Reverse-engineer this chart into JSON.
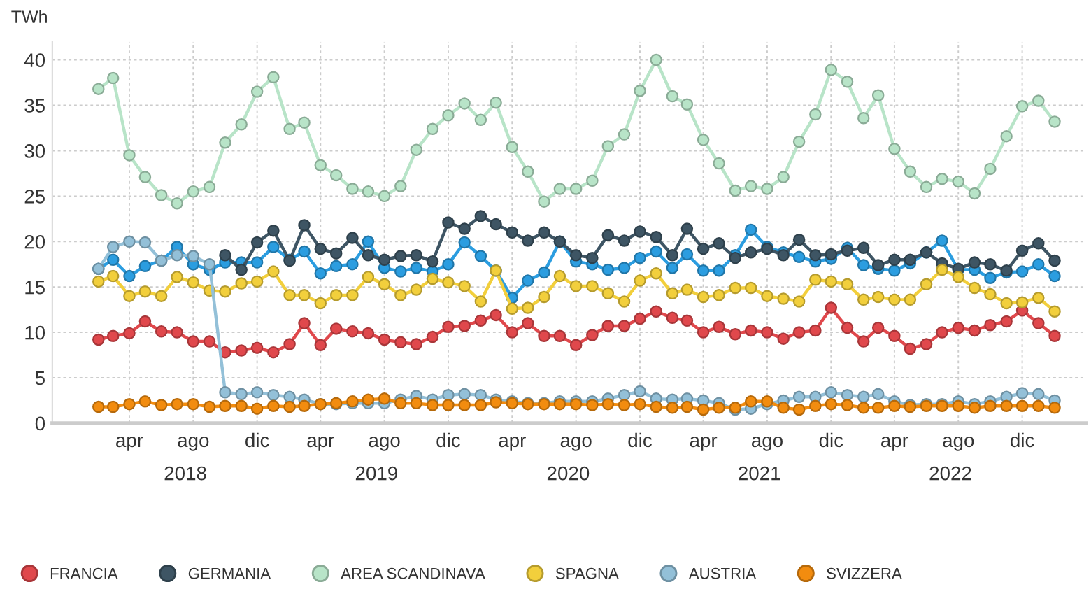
{
  "chart_data": {
    "type": "line",
    "ylabel": "TWh",
    "x": [
      "2018-02",
      "2018-03",
      "2018-04",
      "2018-05",
      "2018-06",
      "2018-07",
      "2018-08",
      "2018-09",
      "2018-10",
      "2018-11",
      "2018-12",
      "2019-01",
      "2019-02",
      "2019-03",
      "2019-04",
      "2019-05",
      "2019-06",
      "2019-07",
      "2019-08",
      "2019-09",
      "2019-10",
      "2019-11",
      "2019-12",
      "2020-01",
      "2020-02",
      "2020-03",
      "2020-04",
      "2020-05",
      "2020-06",
      "2020-07",
      "2020-08",
      "2020-09",
      "2020-10",
      "2020-11",
      "2020-12",
      "2021-01",
      "2021-02",
      "2021-03",
      "2021-04",
      "2021-05",
      "2021-06",
      "2021-07",
      "2021-08",
      "2021-09",
      "2021-10",
      "2021-11",
      "2021-12",
      "2022-01",
      "2022-02",
      "2022-03",
      "2022-04",
      "2022-05",
      "2022-06",
      "2022-07",
      "2022-08",
      "2022-09",
      "2022-10",
      "2022-11",
      "2022-12",
      "2023-01",
      "2023-02"
    ],
    "series": [
      {
        "color": "#2b9de0",
        "values": [
          17.0,
          18.0,
          16.2,
          17.3,
          17.9,
          19.4,
          17.5,
          16.9,
          17.7,
          17.7,
          17.7,
          19.4,
          18.0,
          18.9,
          16.5,
          17.3,
          17.5,
          20.0,
          17.1,
          16.7,
          17.1,
          16.7,
          17.5,
          19.9,
          18.4,
          16.8,
          13.8,
          15.7,
          16.6,
          20.0,
          17.8,
          17.5,
          16.9,
          17.1,
          18.2,
          18.9,
          17.1,
          18.6,
          16.8,
          16.8,
          18.5,
          21.3,
          19.4,
          18.8,
          18.3,
          17.8,
          18.1,
          19.3,
          17.4,
          17.0,
          16.8,
          17.6,
          18.8,
          20.1,
          16.9,
          16.9,
          16.0,
          16.6,
          16.7,
          17.5,
          16.2
        ]
      },
      {
        "name": "FRANCIA",
        "color": "#e0484c",
        "values": [
          9.2,
          9.6,
          9.9,
          11.2,
          10.1,
          10.0,
          9.0,
          9.0,
          7.8,
          8.0,
          8.3,
          7.8,
          8.7,
          11.0,
          8.6,
          10.4,
          10.1,
          9.9,
          9.2,
          8.9,
          8.7,
          9.5,
          10.6,
          10.7,
          11.3,
          11.9,
          10.0,
          11.0,
          9.6,
          9.6,
          8.6,
          9.7,
          10.7,
          10.7,
          11.5,
          12.3,
          11.6,
          11.3,
          10.0,
          10.6,
          9.8,
          10.2,
          10.0,
          9.3,
          10.0,
          10.2,
          12.7,
          10.5,
          9.0,
          10.5,
          9.6,
          8.2,
          8.7,
          10.0,
          10.5,
          10.2,
          10.8,
          11.2,
          12.4,
          11.0,
          9.6
        ]
      },
      {
        "name": "GERMANIA",
        "color": "#3e5564",
        "values": [
          null,
          null,
          null,
          null,
          null,
          null,
          null,
          null,
          18.5,
          16.9,
          19.9,
          21.2,
          17.9,
          21.8,
          19.2,
          18.7,
          20.4,
          18.5,
          18.0,
          18.4,
          18.5,
          17.8,
          22.1,
          21.4,
          22.8,
          21.9,
          21.0,
          20.1,
          21.0,
          20.0,
          18.5,
          18.2,
          20.7,
          20.1,
          21.1,
          20.5,
          18.5,
          21.4,
          19.2,
          19.8,
          18.2,
          18.8,
          19.2,
          18.5,
          20.2,
          18.5,
          18.6,
          19.0,
          19.3,
          17.4,
          18.0,
          18.0,
          18.8,
          17.6,
          17.0,
          17.7,
          17.5,
          16.8,
          19.0,
          19.8,
          17.9
        ]
      },
      {
        "name": "AREA SCANDINAVA",
        "color": "#b8e4c8",
        "values": [
          36.8,
          38.0,
          29.5,
          27.1,
          25.1,
          24.2,
          25.5,
          26.0,
          30.9,
          32.9,
          36.5,
          38.1,
          32.4,
          33.1,
          28.4,
          27.3,
          25.8,
          25.5,
          25.0,
          26.1,
          30.1,
          32.4,
          33.9,
          35.2,
          33.4,
          35.3,
          30.4,
          27.7,
          24.4,
          25.8,
          25.8,
          26.7,
          30.5,
          31.8,
          36.6,
          40.0,
          36.0,
          35.1,
          31.2,
          28.6,
          25.6,
          26.1,
          25.8,
          27.1,
          31.0,
          34.0,
          38.9,
          37.6,
          33.6,
          36.1,
          30.2,
          27.7,
          26.0,
          26.9,
          26.6,
          25.3,
          28.0,
          31.6,
          34.9,
          35.5,
          33.2
        ]
      },
      {
        "name": "SPAGNA",
        "color": "#f2cf3c",
        "values": [
          15.6,
          16.2,
          14.0,
          14.5,
          14.0,
          16.1,
          15.5,
          14.6,
          14.5,
          15.4,
          15.6,
          16.7,
          14.1,
          14.1,
          13.2,
          14.1,
          14.1,
          16.1,
          15.3,
          14.1,
          14.7,
          15.9,
          15.5,
          15.1,
          13.4,
          16.8,
          12.6,
          12.7,
          13.9,
          16.2,
          15.1,
          15.1,
          14.3,
          13.4,
          15.7,
          16.5,
          14.3,
          14.7,
          13.9,
          14.1,
          14.9,
          14.9,
          14.0,
          13.7,
          13.4,
          15.8,
          15.6,
          15.3,
          13.6,
          13.9,
          13.6,
          13.6,
          15.3,
          16.9,
          16.1,
          14.9,
          14.2,
          13.2,
          13.3,
          13.8,
          12.3
        ]
      },
      {
        "name": "AUSTRIA",
        "color": "#93c0d8",
        "values": [
          17.0,
          19.4,
          20.0,
          19.9,
          17.9,
          18.5,
          18.4,
          17.5,
          3.4,
          3.2,
          3.4,
          3.1,
          2.9,
          2.6,
          2.1,
          2.1,
          2.2,
          2.2,
          2.2,
          2.6,
          3.0,
          2.6,
          3.1,
          3.2,
          3.1,
          2.6,
          2.4,
          2.2,
          2.2,
          2.4,
          2.4,
          2.4,
          2.7,
          3.1,
          3.5,
          2.7,
          2.6,
          2.7,
          2.5,
          2.2,
          1.5,
          1.6,
          2.1,
          2.5,
          2.9,
          2.9,
          3.4,
          3.1,
          2.9,
          3.2,
          2.4,
          2.0,
          2.1,
          2.1,
          2.4,
          2.1,
          2.4,
          2.9,
          3.3,
          3.2,
          2.5
        ]
      },
      {
        "name": "SVIZZERA",
        "color": "#f28c0f",
        "values": [
          1.8,
          1.8,
          2.1,
          2.4,
          2.0,
          2.1,
          2.1,
          1.8,
          1.9,
          1.9,
          1.6,
          1.9,
          1.8,
          1.9,
          2.1,
          2.2,
          2.4,
          2.6,
          2.7,
          2.2,
          2.2,
          2.0,
          2.0,
          2.0,
          2.0,
          2.3,
          2.2,
          2.1,
          2.1,
          2.1,
          2.1,
          2.0,
          2.1,
          2.0,
          2.1,
          1.8,
          1.7,
          1.8,
          1.5,
          1.7,
          1.7,
          2.4,
          2.4,
          1.7,
          1.5,
          1.9,
          2.1,
          2.0,
          1.7,
          1.7,
          1.9,
          1.8,
          1.9,
          1.9,
          1.9,
          1.7,
          1.9,
          1.9,
          1.9,
          1.9,
          1.7
        ]
      }
    ],
    "xlim": [
      "2017-11-05",
      "2023-04-01"
    ],
    "xticks": [
      {
        "value": "2018-04",
        "label": "apr"
      },
      {
        "value": "2018-08",
        "label": "ago"
      },
      {
        "value": "2018-12",
        "label": "dic"
      },
      {
        "value": "2019-04",
        "label": "apr"
      },
      {
        "value": "2019-08",
        "label": "ago"
      },
      {
        "value": "2019-12",
        "label": "dic"
      },
      {
        "value": "2020-04",
        "label": "apr"
      },
      {
        "value": "2020-08",
        "label": "ago"
      },
      {
        "value": "2020-12",
        "label": "dic"
      },
      {
        "value": "2021-04",
        "label": "apr"
      },
      {
        "value": "2021-08",
        "label": "ago"
      },
      {
        "value": "2021-12",
        "label": "dic"
      },
      {
        "value": "2022-04",
        "label": "apr"
      },
      {
        "value": "2022-08",
        "label": "ago"
      },
      {
        "value": "2022-12",
        "label": "dic"
      }
    ],
    "ylim": [
      0,
      42
    ],
    "yticks": [
      0,
      5,
      10,
      15,
      20,
      25,
      30,
      35,
      40
    ],
    "annotations": [
      "2018",
      "2019",
      "2020",
      "2021",
      "2022"
    ],
    "grid": true,
    "legend": "bottom",
    "marker": "circle",
    "line_style": "solid"
  }
}
